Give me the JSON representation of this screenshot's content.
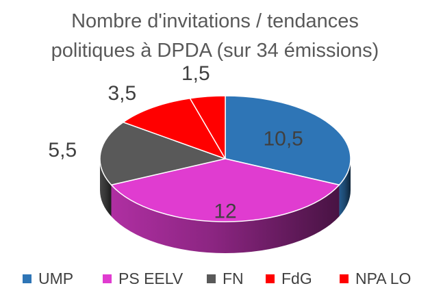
{
  "chart_data": {
    "type": "pie",
    "title_lines": [
      "Nombre d'invitations / tendances",
      "politiques à DPDA (sur 34 émissions)"
    ],
    "categories": [
      "UMP",
      "PS EELV",
      "FN",
      "FdG",
      "NPA LO"
    ],
    "values": [
      10.5,
      12,
      5.5,
      3.5,
      1.5
    ],
    "value_labels": [
      "10,5",
      "12",
      "5,5",
      "3,5",
      "1,5"
    ],
    "colors": [
      "#2E75B6",
      "#E03CD0",
      "#595959",
      "#FF0000",
      "#FF0000"
    ],
    "three_d": true,
    "legend": "bottom"
  }
}
